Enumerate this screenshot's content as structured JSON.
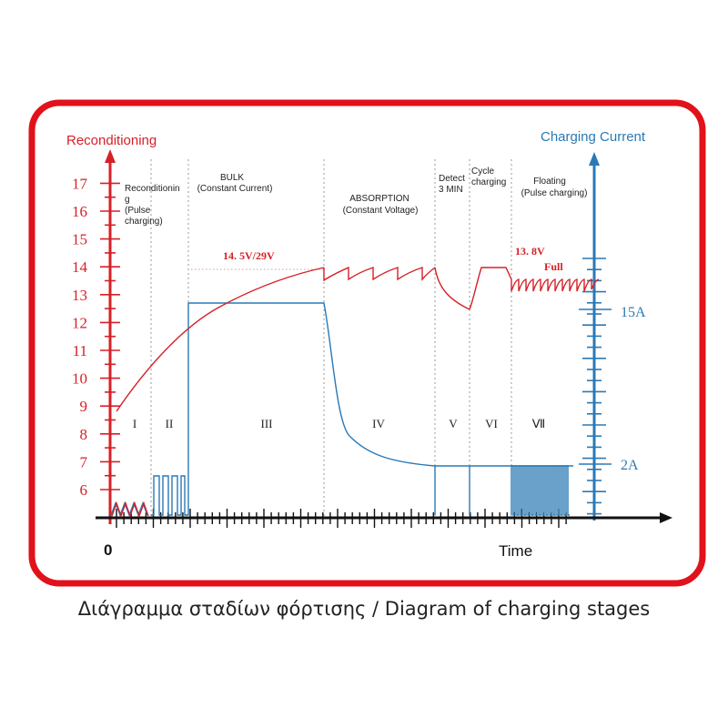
{
  "caption": "Διάγραμμα σταδίων φόρτισης / Diagram of charging stages",
  "colors": {
    "frame": "#e1121b",
    "voltage": "#d62027",
    "current": "#2a79b5",
    "axis": "#111111",
    "divider": "#9a9a9a"
  },
  "left_axis": {
    "title": "Reconditioning",
    "ticks": [
      "6",
      "7",
      "8",
      "9",
      "10",
      "11",
      "12",
      "13",
      "14",
      "15",
      "16",
      "17"
    ]
  },
  "right_axis": {
    "title": "Charging Current",
    "labels": [
      "15A",
      "2A"
    ]
  },
  "x_axis": {
    "origin": "0",
    "label": "Time"
  },
  "stages": [
    {
      "roman": "I"
    },
    {
      "roman": "II"
    },
    {
      "roman": "III"
    },
    {
      "roman": "IV"
    },
    {
      "roman": "V"
    },
    {
      "roman": "VI"
    },
    {
      "roman": "Ⅶ"
    }
  ],
  "stage_titles": {
    "reconditioning": [
      "Reconditionin",
      "g",
      "(Pulse",
      "charging)"
    ],
    "bulk": [
      "BULK",
      "(Constant Current)"
    ],
    "absorption": [
      "ABSORPTION",
      "(Constant Voltage)"
    ],
    "detect": [
      "Detect",
      "3 MIN"
    ],
    "cycle": [
      "Cycle",
      "charging"
    ],
    "floating": [
      "Floating",
      "(Pulse charging)"
    ]
  },
  "annotations": {
    "bulk_voltage": "14. 5V/29V",
    "float_voltage": "13. 8V",
    "full": "Full"
  }
}
